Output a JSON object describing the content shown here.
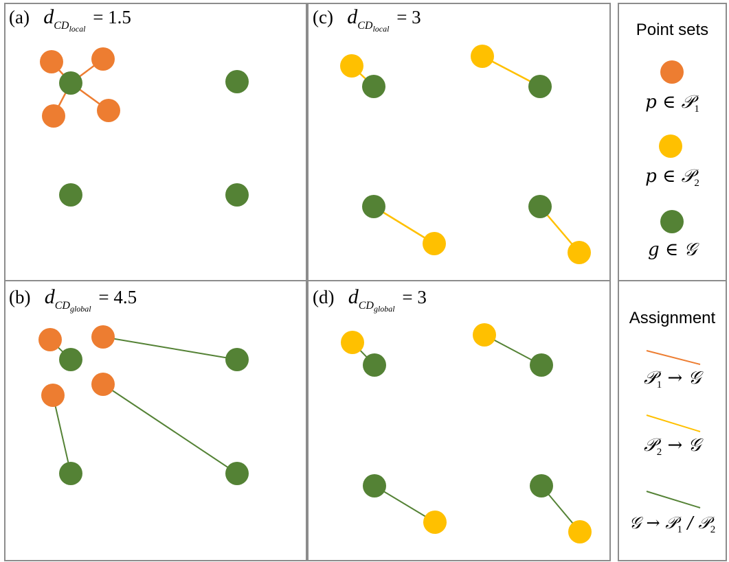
{
  "panels": {
    "a": {
      "tag": "(a)",
      "d": "d",
      "sub_prefix": "CD",
      "sub": "local",
      "eq": "= 1.5"
    },
    "b": {
      "tag": "(b)",
      "d": "d",
      "sub_prefix": "CD",
      "sub": "global",
      "eq": "= 4.5"
    },
    "c": {
      "tag": "(c)",
      "d": "d",
      "sub_prefix": "CD",
      "sub": "local",
      "eq": "= 3"
    },
    "d": {
      "tag": "(d)",
      "d": "d",
      "sub_prefix": "CD",
      "sub": "global",
      "eq": "= 3"
    }
  },
  "legend": {
    "point_sets_title": "Point sets",
    "p1_label": "p ∈ 𝒫",
    "p1_sub": "1",
    "p2_label": "p ∈ 𝒫",
    "p2_sub": "2",
    "g_label": "g ∈ 𝒢",
    "assignment_title": "Assignment",
    "a1_left": "𝒫",
    "a1_sub": "1",
    "a1_right": " → 𝒢",
    "a2_left": "𝒫",
    "a2_sub": "2",
    "a2_right": " → 𝒢",
    "a3_left": "𝒢 → 𝒫",
    "a3_sub1": "1",
    "a3_mid": " / 𝒫",
    "a3_sub2": "2"
  },
  "colors": {
    "p1": "#ED7D31",
    "p2": "#FFC000",
    "g": "#548235",
    "border": "#8c8c8c"
  }
}
